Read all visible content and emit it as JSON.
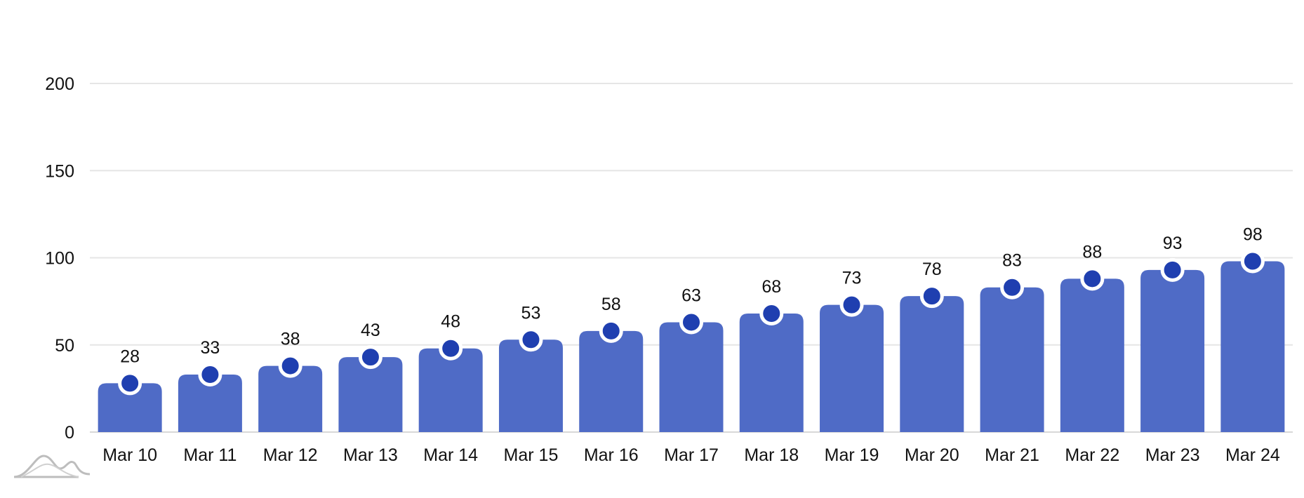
{
  "chart_data": {
    "type": "bar",
    "categories": [
      "Mar 10",
      "Mar 11",
      "Mar 12",
      "Mar 13",
      "Mar 14",
      "Mar 15",
      "Mar 16",
      "Mar 17",
      "Mar 18",
      "Mar 19",
      "Mar 20",
      "Mar 21",
      "Mar 22",
      "Mar 23",
      "Mar 24"
    ],
    "values": [
      28,
      33,
      38,
      43,
      48,
      53,
      58,
      63,
      68,
      73,
      78,
      83,
      88,
      93,
      98
    ],
    "data_labels": [
      "28",
      "33",
      "38",
      "43",
      "48",
      "53",
      "58",
      "63",
      "68",
      "73",
      "78",
      "83",
      "88",
      "93",
      "98"
    ],
    "y_ticks": [
      0,
      50,
      100,
      150,
      200
    ],
    "ylim": [
      0,
      200
    ],
    "grid": true,
    "legend": "none",
    "markers": "circle at bar top",
    "colors": {
      "bar": "#4f6bc6",
      "marker": "#1f3fb0",
      "marker_outline": "#ffffff",
      "grid": "#e6e6e6",
      "text": "#111111"
    }
  },
  "watermark": {
    "icon": "chart-logo-icon"
  }
}
